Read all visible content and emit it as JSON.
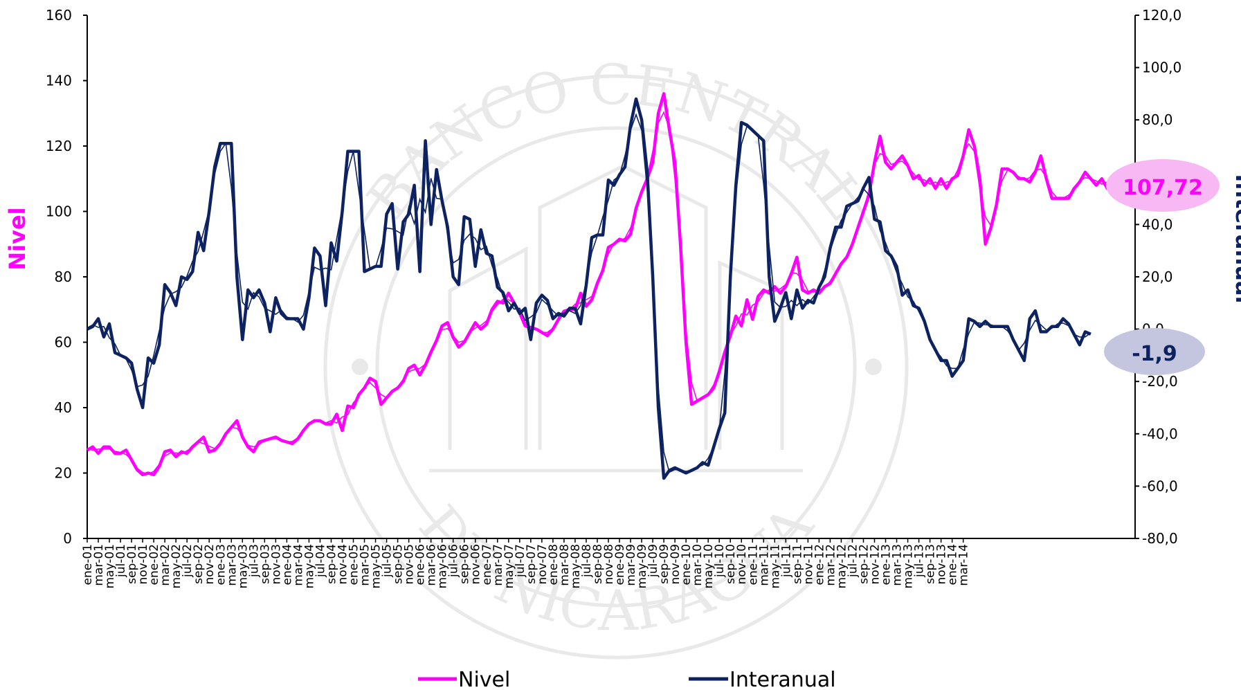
{
  "chart_data": {
    "type": "line",
    "watermark_text": "BANCO CENTRAL DE NICARAGUA",
    "ylabel": "Nivel",
    "ylabel_right": "Interanual",
    "ylim": [
      0,
      160
    ],
    "ylim_right": [
      -80,
      120
    ],
    "yticks": [
      "0",
      "20",
      "40",
      "60",
      "80",
      "100",
      "120",
      "140",
      "160"
    ],
    "yticks_right": [
      "-80,0",
      "-60,0",
      "-40,0",
      "-20,0",
      "0,0",
      "20,0",
      "40,0",
      "60,0",
      "80,0",
      "100,0",
      "120,0"
    ],
    "x_tick_labels": [
      "ene-01",
      "mar-01",
      "may-01",
      "jul-01",
      "sep-01",
      "nov-01",
      "ene-02",
      "mar-02",
      "may-02",
      "jul-02",
      "sep-02",
      "nov-02",
      "ene-03",
      "mar-03",
      "may-03",
      "jul-03",
      "sep-03",
      "nov-03",
      "ene-04",
      "mar-04",
      "may-04",
      "jul-04",
      "sep-04",
      "nov-04",
      "ene-05",
      "mar-05",
      "may-05",
      "jul-05",
      "sep-05",
      "nov-05",
      "ene-06",
      "mar-06",
      "may-06",
      "jul-06",
      "sep-06",
      "nov-06",
      "ene-07",
      "mar-07",
      "may-07",
      "jul-07",
      "sep-07",
      "nov-07",
      "ene-08",
      "mar-08",
      "may-08",
      "jul-08",
      "sep-08",
      "nov-08",
      "ene-09",
      "mar-09",
      "may-09",
      "jul-09",
      "sep-09",
      "nov-09",
      "ene-10",
      "mar-10",
      "may-10",
      "jul-10",
      "sep-10",
      "nov-10",
      "ene-11",
      "mar-11",
      "may-11",
      "jul-11",
      "sep-11",
      "nov-11",
      "ene-12",
      "mar-12",
      "may-12",
      "jul-12",
      "sep-12",
      "nov-12",
      "ene-13",
      "mar-13",
      "may-13",
      "jul-13",
      "sep-13",
      "nov-13",
      "ene-14",
      "mar-14"
    ],
    "series": [
      {
        "name": "Nivel",
        "axis": "left",
        "color": "#ff00ff",
        "values": [
          27,
          28,
          26,
          28,
          28,
          26,
          26,
          27,
          24,
          21,
          19.5,
          20,
          19.5,
          22,
          26.5,
          27,
          25,
          26.5,
          26,
          28,
          29.5,
          31,
          26.5,
          27,
          29,
          32,
          34,
          36,
          31,
          28,
          26.5,
          29.5,
          30,
          30.5,
          31,
          30,
          29.5,
          29,
          30.5,
          33,
          35,
          36,
          36,
          35,
          35,
          38,
          33,
          40.5,
          40,
          44,
          46,
          49,
          48,
          41,
          43,
          45,
          46,
          48,
          52,
          53,
          50,
          53,
          57,
          60.5,
          65,
          66,
          61.5,
          58.5,
          60,
          63,
          66,
          64,
          65.5,
          70,
          72.5,
          72,
          75,
          72,
          69,
          65,
          64.5,
          64,
          63,
          62,
          64,
          67,
          69.5,
          70,
          70,
          75,
          71,
          73,
          78,
          82,
          89,
          90,
          91.5,
          91,
          93,
          101,
          106,
          110,
          115,
          130,
          136,
          125,
          115,
          90,
          60,
          41,
          42,
          43,
          44,
          46,
          51,
          57,
          62,
          68,
          65,
          73,
          67,
          74,
          76,
          75,
          77,
          75,
          77,
          81,
          86,
          76,
          75,
          76,
          75,
          77,
          78,
          81,
          84,
          86,
          90,
          95,
          100,
          105,
          115,
          123,
          115,
          113,
          115,
          117,
          114,
          110,
          111,
          108,
          110,
          107,
          110,
          107,
          110,
          111,
          117,
          125,
          120,
          110,
          90,
          95,
          102,
          113,
          113,
          112,
          110,
          110,
          109,
          112,
          117,
          110,
          104,
          104,
          104,
          104,
          107,
          109,
          112,
          110,
          108,
          110,
          107,
          110,
          107,
          109,
          108,
          107.72
        ]
      },
      {
        "name": "Interanual",
        "axis": "right",
        "color": "#0d2260",
        "values": [
          0,
          1,
          4,
          -3,
          2,
          -9,
          -10,
          -11,
          -13,
          -23,
          -30,
          -11,
          -13,
          -6,
          17,
          14,
          9,
          20,
          19,
          22,
          37,
          30,
          45,
          62,
          71,
          71,
          71,
          20,
          -4,
          15,
          12,
          15,
          10,
          -1,
          12,
          6,
          4,
          4,
          4,
          0,
          12,
          31,
          28,
          9,
          33,
          26,
          45,
          68,
          68,
          68,
          22,
          23,
          24,
          24,
          44,
          48,
          23,
          41,
          44,
          55,
          22,
          72,
          40,
          61,
          49,
          39,
          20,
          17,
          43,
          42,
          24,
          38,
          29,
          28,
          16,
          14,
          7,
          10,
          6,
          8,
          -4,
          10,
          13,
          11,
          4,
          6,
          5,
          8,
          8,
          2,
          17,
          35,
          36,
          36,
          57,
          55,
          59,
          62,
          78,
          88,
          80,
          60,
          20,
          -30,
          -57,
          -54,
          -53,
          -54,
          -55,
          -54,
          -53,
          -51,
          -52,
          -45,
          -38,
          -32,
          20,
          55,
          79,
          78,
          76,
          74,
          72,
          20,
          3,
          8,
          14,
          4,
          15,
          8,
          11,
          10,
          16,
          20,
          31,
          39,
          39,
          47,
          48,
          49,
          54,
          58,
          42,
          41,
          30,
          28,
          24,
          13,
          15,
          9,
          8,
          3,
          -4,
          -8,
          -12,
          -12,
          -18,
          -15,
          -12,
          4,
          3,
          1,
          3,
          1,
          1,
          1,
          1,
          -4,
          -8,
          -12,
          4,
          7,
          -1,
          -1,
          1,
          1,
          4,
          2,
          -2,
          -6,
          -1,
          -1.9
        ]
      }
    ],
    "end_labels": {
      "nivel": "107,72",
      "interanual": "-1,9"
    },
    "legend": {
      "position": "bottom",
      "items": [
        "Nivel",
        "Interanual"
      ]
    }
  }
}
